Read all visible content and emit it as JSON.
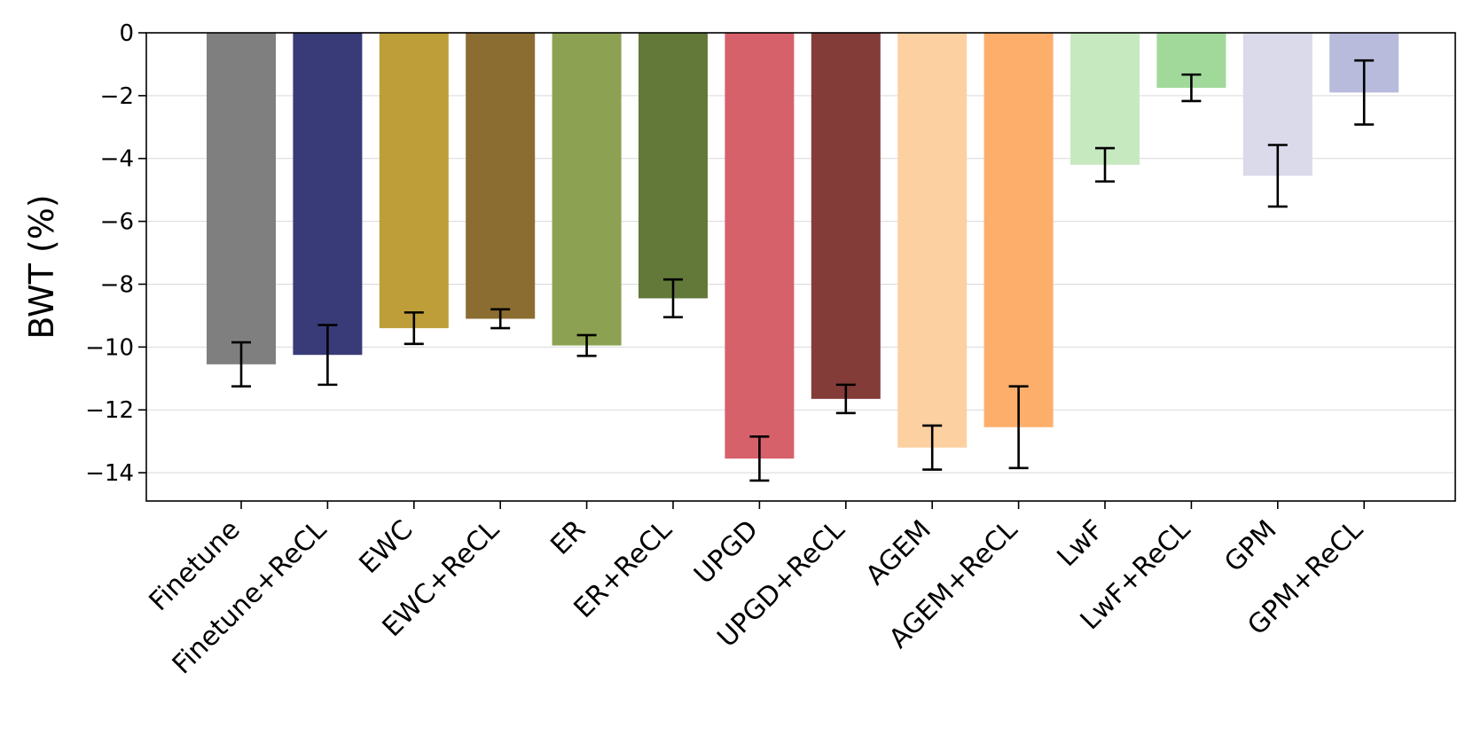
{
  "chart_data": {
    "type": "bar",
    "title": "",
    "xlabel": "",
    "ylabel": "BWT (%)",
    "ylim": [
      -14.9,
      0
    ],
    "yticks": [
      0,
      -2,
      -4,
      -6,
      -8,
      -10,
      -12,
      -14
    ],
    "ytick_labels": [
      "0",
      "−2",
      "−4",
      "−6",
      "−8",
      "−10",
      "−12",
      "−14"
    ],
    "grid": "horizontal",
    "legend": "none",
    "categories": [
      "Finetune",
      "Finetune+ReCL",
      "EWC",
      "EWC+ReCL",
      "ER",
      "ER+ReCL",
      "UPGD",
      "UPGD+ReCL",
      "AGEM",
      "AGEM+ReCL",
      "LwF",
      "LwF+ReCL",
      "GPM",
      "GPM+ReCL"
    ],
    "values": [
      -10.55,
      -10.25,
      -9.4,
      -9.1,
      -9.95,
      -8.45,
      -13.55,
      -11.65,
      -13.2,
      -12.55,
      -4.2,
      -1.75,
      -4.55,
      -1.9
    ],
    "errors": [
      0.7,
      0.95,
      0.5,
      0.3,
      0.33,
      0.6,
      0.7,
      0.45,
      0.7,
      1.3,
      0.53,
      0.42,
      0.98,
      1.02
    ],
    "colors": [
      "#7f7f7f",
      "#393b79",
      "#bd9e39",
      "#8c6d31",
      "#8ca252",
      "#637939",
      "#d6616b",
      "#843c39",
      "#fdd0a2",
      "#fdae6b",
      "#c7e9c0",
      "#a1d99b",
      "#dadaeb",
      "#b8bbdc"
    ]
  }
}
